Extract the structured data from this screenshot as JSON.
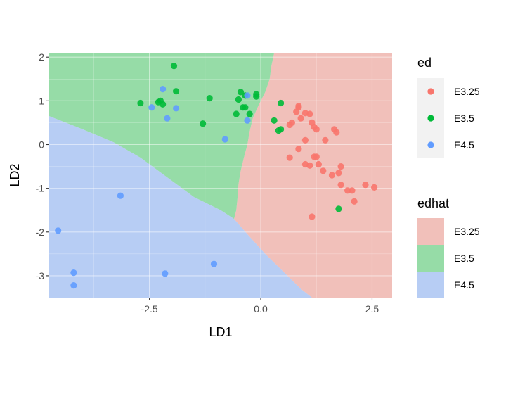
{
  "chart_data": {
    "type": "scatter",
    "title": "",
    "xlabel": "LD1",
    "ylabel": "LD2",
    "xlim": [
      -4.75,
      2.95
    ],
    "ylim": [
      -3.5,
      2.1
    ],
    "x_ticks": [
      -2.5,
      0.0,
      2.5
    ],
    "x_tick_labels": [
      "-2.5",
      "0.0",
      "2.5"
    ],
    "y_ticks": [
      -3,
      -2,
      -1,
      0,
      1,
      2
    ],
    "y_tick_labels": [
      "-3",
      "-2",
      "-1",
      "0",
      "1",
      "2"
    ],
    "grid": true,
    "legend_position": "right",
    "colors": {
      "E3.25": "#F8766D",
      "E3.5": "#00BA38",
      "E4.5": "#619CFF"
    },
    "region_colors": {
      "E3.25": "#F1C0BA",
      "E3.5": "#96DCA7",
      "E4.5": "#B7CDF4"
    },
    "background_regions": {
      "name": "edhat",
      "boundaries": {
        "red_green": [
          [
            0.3,
            2.1
          ],
          [
            0.24,
            1.8
          ],
          [
            0.2,
            1.5
          ],
          [
            0.1,
            1.2
          ],
          [
            -0.05,
            0.9
          ],
          [
            -0.18,
            0.6
          ],
          [
            -0.25,
            0.3
          ],
          [
            -0.3,
            0.0
          ],
          [
            -0.38,
            -0.3
          ],
          [
            -0.45,
            -0.6
          ],
          [
            -0.5,
            -0.9
          ],
          [
            -0.52,
            -1.2
          ],
          [
            -0.55,
            -1.5
          ],
          [
            -0.6,
            -1.7
          ]
        ],
        "green_blue": [
          [
            -4.75,
            0.65
          ],
          [
            -4.0,
            0.35
          ],
          [
            -3.3,
            0.05
          ],
          [
            -2.7,
            -0.3
          ],
          [
            -2.1,
            -0.75
          ],
          [
            -1.5,
            -1.2
          ],
          [
            -0.9,
            -1.5
          ],
          [
            -0.6,
            -1.7
          ]
        ],
        "red_blue": [
          [
            -0.6,
            -1.7
          ],
          [
            -0.3,
            -2.05
          ],
          [
            0.1,
            -2.5
          ],
          [
            0.5,
            -2.9
          ],
          [
            0.9,
            -3.3
          ],
          [
            1.15,
            -3.5
          ]
        ]
      }
    },
    "series": [
      {
        "name": "E3.25",
        "points": [
          [
            1.1,
            0.7
          ],
          [
            1.0,
            0.72
          ],
          [
            0.85,
            0.85
          ],
          [
            0.8,
            0.75
          ],
          [
            0.9,
            0.6
          ],
          [
            0.7,
            0.5
          ],
          [
            0.65,
            0.45
          ],
          [
            1.2,
            0.4
          ],
          [
            1.15,
            0.5
          ],
          [
            1.25,
            0.35
          ],
          [
            1.65,
            0.35
          ],
          [
            1.7,
            0.28
          ],
          [
            1.45,
            0.1
          ],
          [
            1.0,
            0.1
          ],
          [
            0.85,
            -0.1
          ],
          [
            1.2,
            -0.28
          ],
          [
            1.25,
            -0.28
          ],
          [
            0.65,
            -0.3
          ],
          [
            1.0,
            -0.45
          ],
          [
            1.1,
            -0.48
          ],
          [
            1.3,
            -0.45
          ],
          [
            1.4,
            -0.6
          ],
          [
            1.6,
            -0.7
          ],
          [
            1.75,
            -0.65
          ],
          [
            1.8,
            -0.5
          ],
          [
            1.8,
            -0.92
          ],
          [
            1.95,
            -1.05
          ],
          [
            2.05,
            -1.05
          ],
          [
            2.1,
            -1.3
          ],
          [
            2.35,
            -0.92
          ],
          [
            2.55,
            -0.98
          ],
          [
            1.15,
            -1.65
          ],
          [
            0.85,
            0.88
          ]
        ]
      },
      {
        "name": "E3.5",
        "points": [
          [
            -1.95,
            1.8
          ],
          [
            -2.25,
            1.0
          ],
          [
            -2.3,
            0.97
          ],
          [
            -2.7,
            0.95
          ],
          [
            -2.2,
            0.92
          ],
          [
            -1.9,
            1.22
          ],
          [
            -1.15,
            1.06
          ],
          [
            -0.45,
            1.2
          ],
          [
            -0.35,
            1.12
          ],
          [
            -0.1,
            1.15
          ],
          [
            -0.5,
            1.03
          ],
          [
            -0.4,
            0.85
          ],
          [
            -0.35,
            0.85
          ],
          [
            -0.1,
            1.1
          ],
          [
            -0.25,
            0.7
          ],
          [
            -0.55,
            0.7
          ],
          [
            -1.3,
            0.48
          ],
          [
            0.3,
            0.55
          ],
          [
            0.45,
            0.35
          ],
          [
            0.4,
            0.32
          ],
          [
            0.45,
            0.95
          ],
          [
            1.75,
            -1.47
          ]
        ]
      },
      {
        "name": "E4.5",
        "points": [
          [
            -2.2,
            1.27
          ],
          [
            -1.9,
            0.83
          ],
          [
            -2.45,
            0.85
          ],
          [
            -2.1,
            0.6
          ],
          [
            -3.15,
            -1.17
          ],
          [
            -4.55,
            -1.97
          ],
          [
            -4.2,
            -2.93
          ],
          [
            -4.2,
            -3.22
          ],
          [
            -2.15,
            -2.95
          ],
          [
            -1.05,
            -2.73
          ],
          [
            -0.3,
            1.12
          ],
          [
            -0.3,
            0.55
          ],
          [
            -0.8,
            0.12
          ]
        ]
      }
    ]
  },
  "legend": {
    "points": {
      "title": "ed",
      "entries": [
        "E3.25",
        "E3.5",
        "E4.5"
      ]
    },
    "regions": {
      "title": "edhat",
      "entries": [
        "E3.25",
        "E3.5",
        "E4.5"
      ]
    }
  }
}
